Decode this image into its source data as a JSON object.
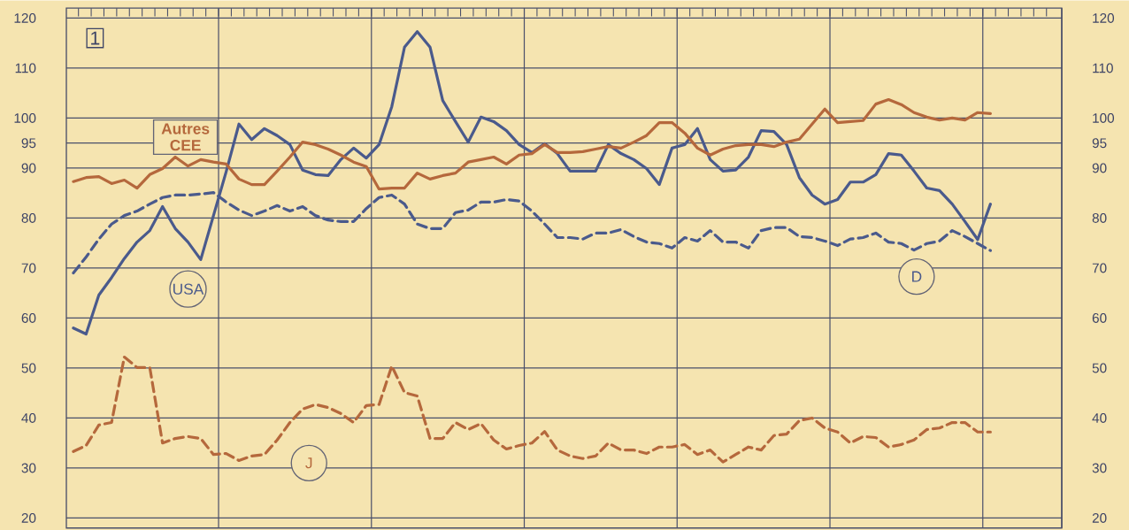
{
  "chart_data": {
    "type": "line",
    "annotations": [
      "1"
    ],
    "categories": [
      null,
      null,
      null,
      null,
      null,
      null,
      null,
      null,
      null,
      null,
      null,
      null,
      null,
      null,
      null,
      null,
      null,
      null,
      null,
      null,
      null,
      null,
      null,
      null,
      null,
      null,
      null,
      null,
      null,
      null,
      null,
      null,
      null,
      null,
      null,
      null,
      null,
      null,
      null,
      null,
      null,
      null,
      null,
      null,
      null,
      null,
      null,
      null,
      null,
      null,
      null,
      null,
      null,
      null,
      null,
      null,
      null,
      null,
      null,
      null,
      null,
      null,
      null,
      null,
      null,
      null,
      null,
      null,
      null,
      null,
      null,
      null,
      null
    ],
    "series": [
      {
        "name": "USA",
        "color": "#4a5a8c",
        "line_style": "solid",
        "values": [
          58,
          56.8,
          64.6,
          68.1,
          71.9,
          75.2,
          77.5,
          82.3,
          77.9,
          75.2,
          71.7,
          80.5,
          89.3,
          98.8,
          95.7,
          97.9,
          96.5,
          94.7,
          89.6,
          88.7,
          88.5,
          91.7,
          94,
          92,
          94.7,
          102.3,
          114.2,
          117.3,
          114.2,
          103.5,
          99.3,
          95.2,
          100.2,
          99.3,
          97.5,
          94.7,
          93.1,
          94.9,
          92.9,
          89.4,
          89.4,
          89.4,
          94.7,
          92.9,
          91.7,
          89.9,
          86.7,
          94,
          94.7,
          97.9,
          91.7,
          89.4,
          89.6,
          92.2,
          97.5,
          97.3,
          94.7,
          88.1,
          84.6,
          82.8,
          83.7,
          87.2,
          87.2,
          88.7,
          92.9,
          92.6,
          89.4,
          86,
          85.5,
          82.8,
          79.3,
          75.7,
          82.8
        ]
      },
      {
        "name": "Autres CEE",
        "color": "#b5683c",
        "line_style": "solid",
        "values": [
          87.3,
          88.1,
          88.3,
          86.9,
          87.6,
          86,
          88.7,
          89.9,
          92.2,
          90.4,
          91.7,
          91.2,
          90.8,
          87.8,
          86.7,
          86.7,
          89.4,
          92.2,
          95.2,
          94.7,
          93.8,
          92.6,
          91.2,
          90.3,
          85.8,
          86,
          86,
          89,
          87.8,
          88.5,
          89,
          91.2,
          91.7,
          92.2,
          90.8,
          92.6,
          92.9,
          94.7,
          93.1,
          93.1,
          93.3,
          93.8,
          94.3,
          94,
          95.2,
          96.5,
          99.1,
          99.1,
          97,
          94,
          92.6,
          93.8,
          94.5,
          94.7,
          94.7,
          94.3,
          95.2,
          95.8,
          98.8,
          101.8,
          99.1,
          99.3,
          99.5,
          102.8,
          103.7,
          102.7,
          101.1,
          100.2,
          99.6,
          100,
          99.6,
          101.1,
          100.9
        ]
      },
      {
        "name": "D",
        "color": "#4a5a8c",
        "line_style": "dashed",
        "values": [
          69,
          72.2,
          75.8,
          78.8,
          80.5,
          81.4,
          82.8,
          84.1,
          84.6,
          84.6,
          84.8,
          85.1,
          83.2,
          81.6,
          80.5,
          81.4,
          82.5,
          81.4,
          82.3,
          80.5,
          79.6,
          79.3,
          79.3,
          81.9,
          84.1,
          84.6,
          82.8,
          78.8,
          77.9,
          77.9,
          81.1,
          81.6,
          83.2,
          83.2,
          83.7,
          83.4,
          81.4,
          78.8,
          76.1,
          76.1,
          75.8,
          77,
          77,
          77.7,
          76.3,
          75.2,
          74.9,
          74,
          76.1,
          75.4,
          77.5,
          75.2,
          75.2,
          74,
          77.5,
          78.1,
          78.1,
          76.3,
          76.1,
          75.4,
          74.5,
          75.8,
          76.1,
          77,
          75.2,
          74.9,
          73.6,
          74.9,
          75.4,
          77.5,
          76.3,
          74.9,
          73.5
        ]
      },
      {
        "name": "J",
        "color": "#b5683c",
        "line_style": "dashed",
        "values": [
          33.3,
          34.5,
          38.6,
          39.1,
          52.2,
          50.1,
          50.1,
          35,
          35.9,
          36.3,
          35.9,
          32.7,
          32.9,
          31.5,
          32.4,
          32.7,
          35.6,
          39.1,
          41.8,
          42.7,
          42.1,
          40.9,
          39.1,
          42.5,
          42.7,
          50.4,
          45.1,
          44.4,
          35.9,
          35.9,
          39.1,
          37.7,
          38.9,
          35.6,
          33.8,
          34.5,
          35,
          37.3,
          33.6,
          32.4,
          31.9,
          32.4,
          35,
          33.6,
          33.6,
          32.9,
          34.2,
          34.2,
          34.7,
          32.7,
          33.6,
          31.2,
          32.7,
          34.2,
          33.6,
          36.5,
          36.8,
          39.5,
          40,
          38,
          37.2,
          35,
          36.3,
          36.1,
          34.2,
          34.7,
          35.6,
          37.7,
          38,
          39.1,
          39.1,
          37.2,
          37.2
        ]
      }
    ],
    "ylim": [
      18,
      122
    ],
    "yticks": [
      20,
      30,
      40,
      50,
      60,
      70,
      80,
      90,
      95,
      100,
      110,
      120
    ],
    "y2lim": [
      18,
      122
    ],
    "y2ticks": [
      20,
      30,
      40,
      50,
      60,
      70,
      80,
      90,
      95,
      100,
      110,
      120
    ],
    "grid": true,
    "tick_labels": "y"
  }
}
